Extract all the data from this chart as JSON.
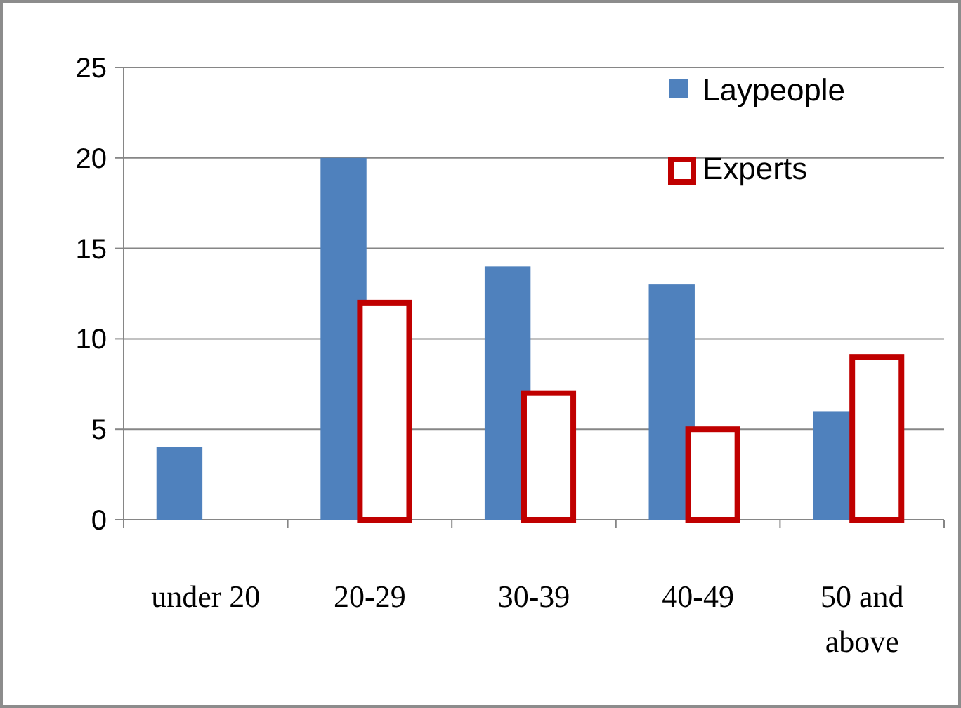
{
  "chart_data": {
    "type": "bar",
    "categories": [
      "under 20",
      "20-29",
      "30-39",
      "40-49",
      "50 and above"
    ],
    "series": [
      {
        "name": "Laypeople",
        "color": "#4f81bd",
        "values": [
          4,
          20,
          14,
          13,
          6
        ]
      },
      {
        "name": "Experts",
        "color": "#c00000",
        "values": [
          null,
          12,
          7,
          5,
          9
        ]
      }
    ],
    "ylim": [
      0,
      25
    ],
    "yticks": [
      0,
      5,
      10,
      15,
      20,
      25
    ],
    "grid": "y",
    "legend": "top right"
  }
}
